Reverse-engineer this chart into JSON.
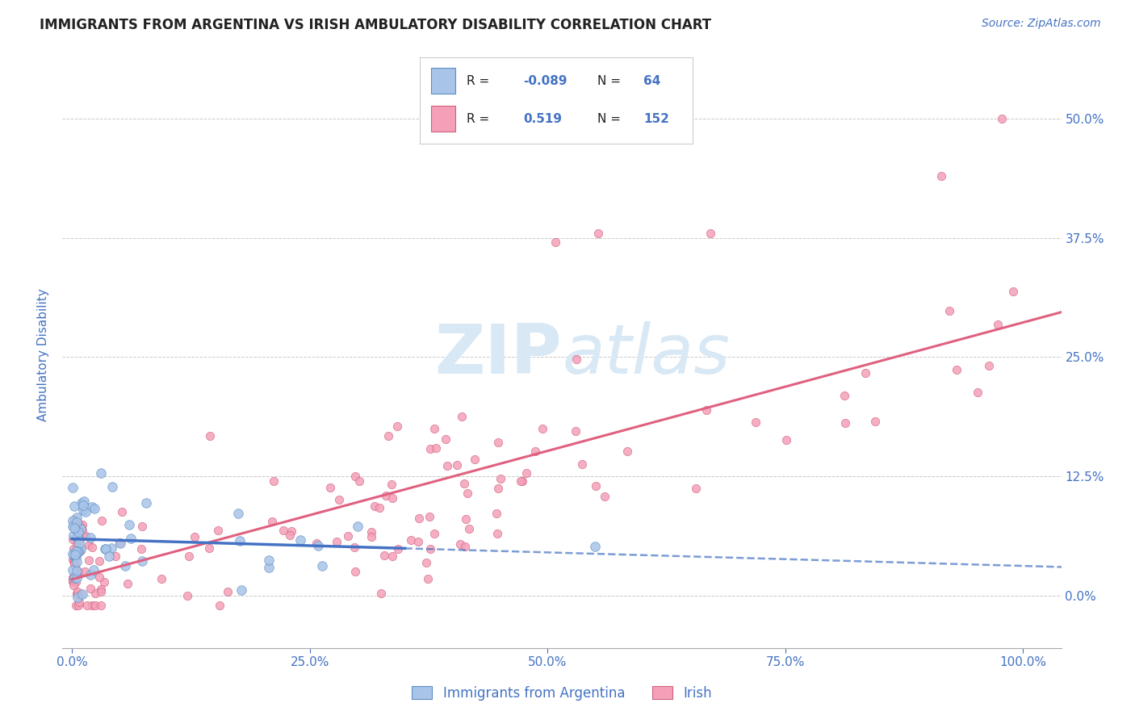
{
  "title": "IMMIGRANTS FROM ARGENTINA VS IRISH AMBULATORY DISABILITY CORRELATION CHART",
  "source": "Source: ZipAtlas.com",
  "ylabel": "Ambulatory Disability",
  "legend_label1": "Immigrants from Argentina",
  "legend_label2": "Irish",
  "r1": -0.089,
  "n1": 64,
  "r2": 0.519,
  "n2": 152,
  "color1": "#A8C4E8",
  "color2": "#F4A0B8",
  "color1_edge": "#5B8EC4",
  "color2_edge": "#D06080",
  "line1_color": "#4472C4",
  "line2_color": "#E06080",
  "background": "#FFFFFF",
  "xticks": [
    0.0,
    0.25,
    0.5,
    0.75,
    1.0
  ],
  "xticklabels": [
    "0.0%",
    "25.0%",
    "50.0%",
    "75.0%",
    "100.0%"
  ],
  "yticks": [
    0.0,
    0.125,
    0.25,
    0.375,
    0.5
  ],
  "yticklabels": [
    "0.0%",
    "12.5%",
    "25.0%",
    "37.5%",
    "50.0%"
  ],
  "title_color": "#222222",
  "source_color": "#4472C4",
  "axis_label_color": "#4472C4",
  "tick_color": "#4472C4",
  "watermark_color": "#D8E8F4",
  "grid_color": "#BBBBBB",
  "legend_r_color": "#4472C4",
  "legend_n_color": "#4472C4",
  "legend_text_color": "#222222"
}
